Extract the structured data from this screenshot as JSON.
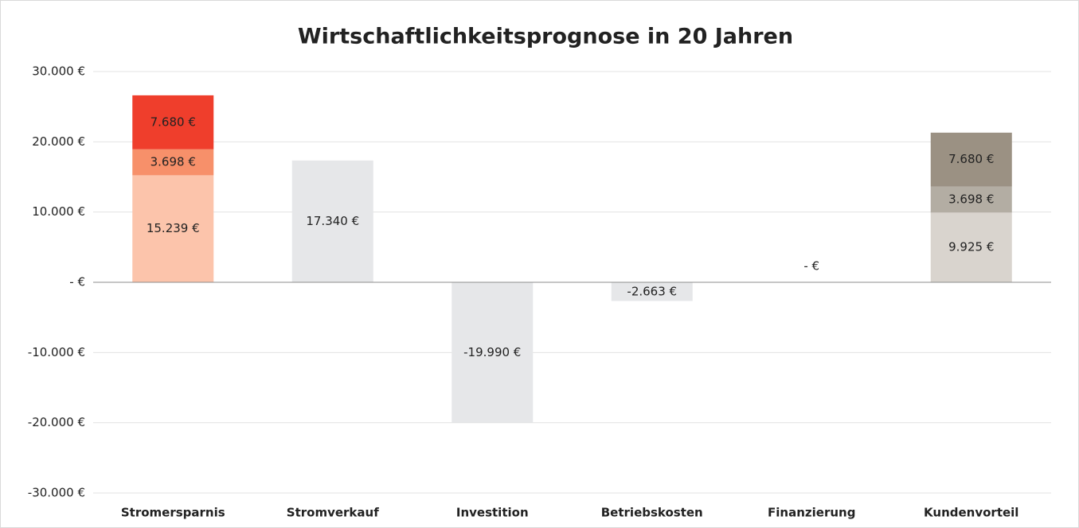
{
  "chart_data": {
    "type": "stacked_bar",
    "title": "Wirtschaftlichkeitsprognose in 20 Jahren",
    "categories": [
      "Stromersparnis",
      "Stromverkauf",
      "Investition",
      "Betriebskosten",
      "Finanzierung",
      "Kundenvorteil"
    ],
    "series": [
      {
        "colors": [
          "#fcc4ab",
          "#e6e7e9",
          "#e6e7e9",
          "#e6e7e9",
          "#e6e7e9",
          "#d9d4ce"
        ],
        "values": [
          15239,
          17340,
          -19990,
          -2663,
          0,
          9925
        ],
        "value_labels": [
          "15.239 €",
          "17.340 €",
          "-19.990 €",
          "-2.663 €",
          "- €",
          "9.925 €"
        ]
      },
      {
        "colors": [
          "#f7906a",
          null,
          null,
          null,
          null,
          "#b3ada3"
        ],
        "values": [
          3698,
          null,
          null,
          null,
          null,
          3698
        ],
        "value_labels": [
          "3.698 €",
          null,
          null,
          null,
          null,
          "3.698 €"
        ]
      },
      {
        "colors": [
          "#ef3e2c",
          null,
          null,
          null,
          null,
          "#9b9183"
        ],
        "values": [
          7680,
          null,
          null,
          null,
          null,
          7680
        ],
        "value_labels": [
          "7.680 €",
          null,
          null,
          null,
          null,
          "7.680 €"
        ]
      }
    ],
    "ylim": [
      -30000,
      30000
    ],
    "yticks": [
      {
        "value": -30000,
        "label": "-30.000 €"
      },
      {
        "value": -20000,
        "label": "-20.000 €"
      },
      {
        "value": -10000,
        "label": "-10.000 €"
      },
      {
        "value": 0,
        "label": "- €"
      },
      {
        "value": 10000,
        "label": "10.000 €"
      },
      {
        "value": 20000,
        "label": "20.000 €"
      },
      {
        "value": 30000,
        "label": "30.000 €"
      }
    ],
    "grid": true
  }
}
